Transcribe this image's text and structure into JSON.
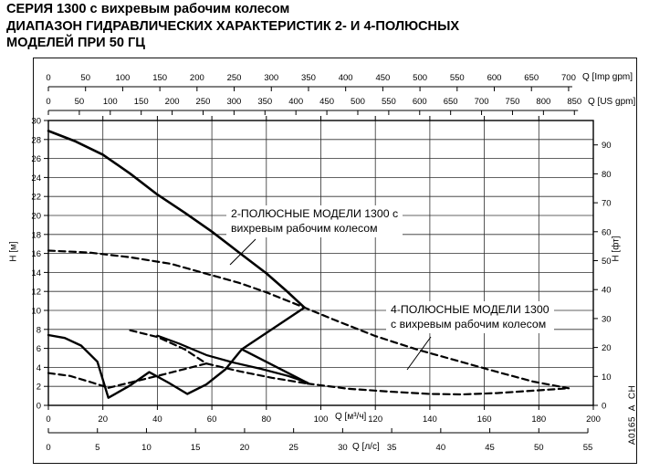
{
  "title": {
    "line1": "СЕРИЯ 1300 с вихревым рабочим колесом",
    "line2": "ДИАПАЗОН ГИДРАВЛИЧЕСКИХ ХАРАКТЕРИСТИК 2- И 4-ПОЛЮСНЫХ",
    "line3": "МОДЕЛЕЙ ПРИ 50 ГЦ"
  },
  "watermark": "A0165_A_CH",
  "chart_data": {
    "type": "line",
    "grid": true,
    "frequency": "50 Гц",
    "axes": {
      "x_m3h": {
        "label": "Q [м³/ч]",
        "min": 0,
        "max": 200,
        "ticks": [
          0,
          20,
          40,
          60,
          80,
          100,
          120,
          140,
          160,
          180,
          200
        ]
      },
      "x_ls": {
        "label": "Q [л/с]",
        "min": 0,
        "max": 55,
        "ticks": [
          0,
          5,
          10,
          15,
          20,
          25,
          30,
          35,
          40,
          45,
          50,
          55
        ],
        "m3h_per_unit": 3.6
      },
      "x_imp_gpm": {
        "label": "Q [Imp gpm]",
        "min": 0,
        "max": 700,
        "ticks": [
          0,
          50,
          100,
          150,
          200,
          250,
          300,
          350,
          400,
          450,
          500,
          550,
          600,
          650,
          700
        ],
        "m3h_per_unit": 0.27276
      },
      "x_us_gpm": {
        "label": "Q [US gpm]",
        "min": 0,
        "max": 850,
        "ticks": [
          0,
          50,
          100,
          150,
          200,
          250,
          300,
          350,
          400,
          450,
          500,
          550,
          600,
          650,
          700,
          750,
          800,
          850
        ],
        "m3h_per_unit": 0.22712
      },
      "y_m": {
        "label": "H [м]",
        "min": 0,
        "max": 30,
        "ticks": [
          0,
          2,
          4,
          6,
          8,
          10,
          12,
          14,
          16,
          18,
          20,
          22,
          24,
          26,
          28,
          30
        ]
      },
      "y_ft": {
        "label": "H [фт]",
        "min": 0,
        "max": 90,
        "ticks": [
          0,
          10,
          20,
          30,
          40,
          50,
          60,
          70,
          80,
          90
        ],
        "m_per_unit": 0.3048
      }
    },
    "series": [
      {
        "name": "2-pole-upper-limit",
        "style": "solid",
        "width": 2.6,
        "points": [
          [
            0,
            28.9
          ],
          [
            10,
            27.8
          ],
          [
            20,
            26.4
          ],
          [
            30,
            24.4
          ],
          [
            40,
            22.2
          ],
          [
            50,
            20.3
          ],
          [
            60,
            18.3
          ],
          [
            70,
            16.1
          ],
          [
            80,
            13.9
          ],
          [
            87,
            12.15
          ],
          [
            94,
            10.3
          ]
        ]
      },
      {
        "name": "2-pole-lower-zigzag",
        "style": "solid",
        "width": 2.4,
        "points": [
          [
            0,
            7.4
          ],
          [
            6,
            7.1
          ],
          [
            12,
            6.3
          ],
          [
            18,
            4.6
          ],
          [
            22,
            0.8
          ],
          [
            30,
            2.1
          ],
          [
            37,
            3.5
          ],
          [
            44,
            2.4
          ],
          [
            51,
            1.2
          ],
          [
            58,
            2.2
          ],
          [
            65,
            3.8
          ],
          [
            71,
            5.9
          ],
          [
            94,
            10.3
          ]
        ]
      },
      {
        "name": "2-pole-max-flow-arm",
        "style": "solid",
        "width": 2.4,
        "points": [
          [
            71,
            5.9
          ],
          [
            95.5,
            2.3
          ]
        ]
      },
      {
        "name": "2-pole-inner-curve",
        "style": "solid",
        "width": 2.2,
        "points": [
          [
            40,
            7.35
          ],
          [
            48,
            6.5
          ],
          [
            58,
            5.3
          ],
          [
            68,
            4.5
          ],
          [
            78,
            3.85
          ],
          [
            88,
            3.1
          ],
          [
            95,
            2.4
          ]
        ]
      },
      {
        "name": "4-pole-upper-limit",
        "style": "dashed",
        "width": 2.2,
        "points": [
          [
            0,
            16.3
          ],
          [
            15,
            16.1
          ],
          [
            30,
            15.6
          ],
          [
            45,
            14.9
          ],
          [
            60,
            13.7
          ],
          [
            70,
            12.9
          ],
          [
            80,
            11.9
          ],
          [
            94,
            10.3
          ],
          [
            105,
            9.0
          ],
          [
            120,
            7.3
          ],
          [
            135,
            5.9
          ],
          [
            150,
            4.7
          ],
          [
            165,
            3.5
          ],
          [
            178,
            2.5
          ],
          [
            191,
            1.8
          ]
        ]
      },
      {
        "name": "4-pole-inner-upper",
        "style": "dashed",
        "width": 2.2,
        "points": [
          [
            30,
            7.9
          ],
          [
            40,
            7.2
          ],
          [
            50,
            5.9
          ],
          [
            58,
            4.4
          ],
          [
            70,
            3.6
          ],
          [
            82,
            2.9
          ],
          [
            95,
            2.3
          ]
        ]
      },
      {
        "name": "4-pole-closing-diagonal",
        "style": "dashed",
        "width": 2.2,
        "points": [
          [
            22,
            1.85
          ],
          [
            40,
            3.1
          ],
          [
            58,
            4.4
          ]
        ]
      },
      {
        "name": "4-pole-lower-left",
        "style": "dashed",
        "width": 2.2,
        "points": [
          [
            0,
            3.4
          ],
          [
            8,
            3.1
          ],
          [
            16,
            2.4
          ],
          [
            22,
            1.85
          ]
        ]
      },
      {
        "name": "4-pole-lower-limit",
        "style": "dashed",
        "width": 2.2,
        "points": [
          [
            95,
            2.3
          ],
          [
            110,
            1.75
          ],
          [
            125,
            1.45
          ],
          [
            140,
            1.2
          ],
          [
            152,
            1.15
          ],
          [
            165,
            1.3
          ],
          [
            178,
            1.55
          ],
          [
            191,
            1.8
          ]
        ]
      }
    ],
    "annotations": [
      {
        "name": "2-pole-label",
        "lines": [
          "2-ПОЛЮСНЫЕ МОДЕЛИ 1300 с",
          "вихревым рабочим колесом"
        ],
        "leader": [
          [
            280,
            262
          ],
          [
            252,
            290
          ]
        ]
      },
      {
        "name": "4-pole-label",
        "lines": [
          "4-ПОЛЮСНЫЕ МОДЕЛИ 1300",
          "с вихревым рабочим колесом"
        ],
        "leader": [
          [
            472,
            369
          ],
          [
            446,
            405
          ]
        ]
      }
    ]
  }
}
